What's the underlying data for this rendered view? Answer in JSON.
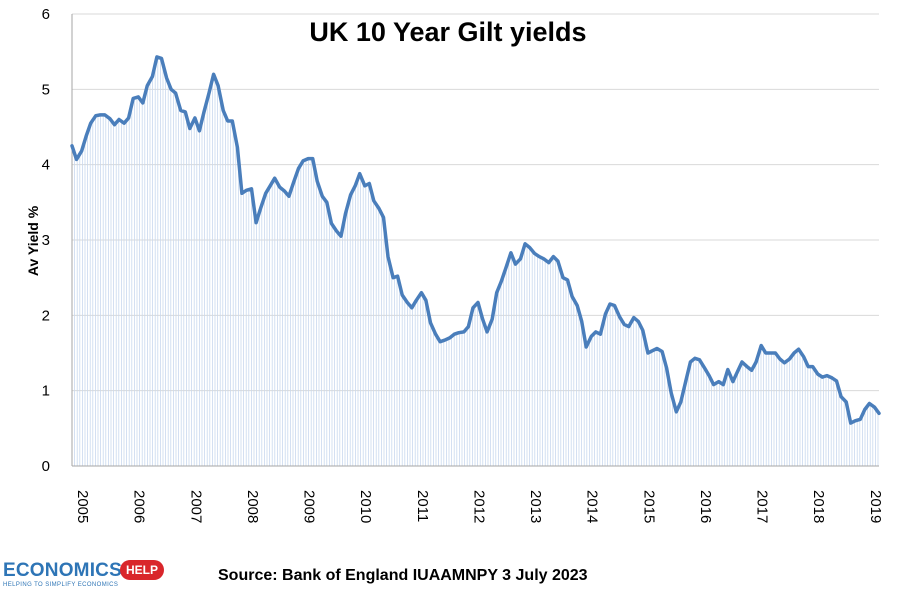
{
  "chart_data": {
    "type": "area",
    "title": "UK 10 Year Gilt yields",
    "ylabel": "Av Yield %",
    "xlabel": "",
    "ylim": [
      0,
      6
    ],
    "yticks": [
      "0",
      "1",
      "2",
      "3",
      "4",
      "5",
      "6"
    ],
    "xlim": [
      2005.0,
      2019.25
    ],
    "xticks": [
      "2005",
      "2006",
      "2007",
      "2008",
      "2009",
      "2010",
      "2011",
      "2012",
      "2013",
      "2014",
      "2015",
      "2016",
      "2017",
      "2018",
      "2019"
    ],
    "grid": true,
    "series": [
      {
        "color": "#4a7ebb",
        "x": [
          2005.0,
          2005.08,
          2005.17,
          2005.25,
          2005.33,
          2005.42,
          2005.5,
          2005.58,
          2005.67,
          2005.75,
          2005.83,
          2005.92,
          2006.0,
          2006.08,
          2006.17,
          2006.25,
          2006.33,
          2006.42,
          2006.5,
          2006.58,
          2006.67,
          2006.75,
          2006.83,
          2006.92,
          2007.0,
          2007.08,
          2007.17,
          2007.25,
          2007.33,
          2007.42,
          2007.5,
          2007.58,
          2007.67,
          2007.75,
          2007.83,
          2007.92,
          2008.0,
          2008.08,
          2008.17,
          2008.25,
          2008.33,
          2008.42,
          2008.5,
          2008.58,
          2008.67,
          2008.75,
          2008.83,
          2008.92,
          2009.0,
          2009.08,
          2009.17,
          2009.25,
          2009.33,
          2009.42,
          2009.5,
          2009.58,
          2009.67,
          2009.75,
          2009.83,
          2009.92,
          2010.0,
          2010.08,
          2010.17,
          2010.25,
          2010.33,
          2010.42,
          2010.5,
          2010.58,
          2010.67,
          2010.75,
          2010.83,
          2010.92,
          2011.0,
          2011.08,
          2011.17,
          2011.25,
          2011.33,
          2011.42,
          2011.5,
          2011.58,
          2011.67,
          2011.75,
          2011.83,
          2011.92,
          2012.0,
          2012.08,
          2012.17,
          2012.25,
          2012.33,
          2012.42,
          2012.5,
          2012.58,
          2012.67,
          2012.75,
          2012.83,
          2012.92,
          2013.0,
          2013.08,
          2013.17,
          2013.25,
          2013.33,
          2013.42,
          2013.5,
          2013.58,
          2013.67,
          2013.75,
          2013.83,
          2013.92,
          2014.0,
          2014.08,
          2014.17,
          2014.25,
          2014.33,
          2014.42,
          2014.5,
          2014.58,
          2014.67,
          2014.75,
          2014.83,
          2014.92,
          2015.0,
          2015.08,
          2015.17,
          2015.25,
          2015.33,
          2015.42,
          2015.5,
          2015.58,
          2015.67,
          2015.75,
          2015.83,
          2015.92,
          2016.0,
          2016.08,
          2016.17,
          2016.25,
          2016.33,
          2016.42,
          2016.5,
          2016.58,
          2016.67,
          2016.75,
          2016.83,
          2016.92,
          2017.0,
          2017.08,
          2017.17,
          2017.25,
          2017.33,
          2017.42,
          2017.5,
          2017.58,
          2017.67,
          2017.75,
          2017.83,
          2017.92,
          2018.0,
          2018.08,
          2018.17,
          2018.25,
          2018.33,
          2018.42,
          2018.5,
          2018.58,
          2018.67,
          2018.75,
          2018.83,
          2018.92,
          2019.0,
          2019.08,
          2019.17,
          2019.25
        ],
        "values": [
          4.25,
          4.07,
          4.18,
          4.38,
          4.55,
          4.65,
          4.66,
          4.66,
          4.61,
          4.53,
          4.6,
          4.55,
          4.62,
          4.88,
          4.9,
          4.82,
          5.05,
          5.17,
          5.43,
          5.41,
          5.15,
          5.0,
          4.95,
          4.72,
          4.7,
          4.48,
          4.62,
          4.45,
          4.7,
          4.95,
          5.2,
          5.05,
          4.72,
          4.58,
          4.58,
          4.23,
          3.62,
          3.66,
          3.68,
          3.23,
          3.42,
          3.62,
          3.72,
          3.82,
          3.7,
          3.65,
          3.58,
          3.78,
          3.95,
          4.05,
          4.08,
          4.08,
          3.78,
          3.58,
          3.5,
          3.22,
          3.12,
          3.05,
          3.35,
          3.6,
          3.72,
          3.88,
          3.72,
          3.75,
          3.52,
          3.42,
          3.3,
          2.78,
          2.5,
          2.52,
          2.27,
          2.17,
          2.1,
          2.2,
          2.3,
          2.2,
          1.9,
          1.75,
          1.65,
          1.67,
          1.7,
          1.75,
          1.77,
          1.78,
          1.85,
          2.1,
          2.17,
          1.95,
          1.78,
          1.95,
          2.3,
          2.45,
          2.65,
          2.83,
          2.68,
          2.75,
          2.95,
          2.9,
          2.82,
          2.78,
          2.75,
          2.7,
          2.78,
          2.72,
          2.5,
          2.47,
          2.25,
          2.13,
          1.92,
          1.58,
          1.72,
          1.78,
          1.75,
          2.02,
          2.15,
          2.13,
          1.98,
          1.88,
          1.85,
          1.97,
          1.92,
          1.8,
          1.5,
          1.53,
          1.56,
          1.52,
          1.3,
          0.97,
          0.72,
          0.85,
          1.1,
          1.38,
          1.43,
          1.41,
          1.3,
          1.2,
          1.08,
          1.12,
          1.08,
          1.28,
          1.12,
          1.25,
          1.38,
          1.32,
          1.27,
          1.38,
          1.6,
          1.5,
          1.5,
          1.5,
          1.42,
          1.37,
          1.42,
          1.5,
          1.55,
          1.45,
          1.32,
          1.32,
          1.22,
          1.18,
          1.2,
          1.17,
          1.13,
          0.92,
          0.85,
          0.57,
          0.6,
          0.62,
          0.75,
          0.83,
          0.78,
          0.7
        ]
      }
    ],
    "source": "Source: Bank of England IUAAMNPY 3 July 2023"
  },
  "logo": {
    "word": "ECONOMICS",
    "badge": "HELP",
    "tagline": "HELPING TO SIMPLIFY ECONOMICS"
  }
}
